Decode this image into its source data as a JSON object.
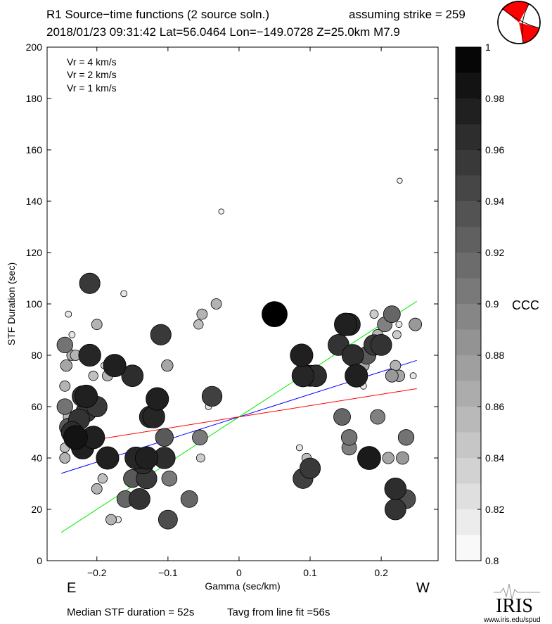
{
  "header": {
    "title": "R1 Source−time functions (2 source soln.)",
    "strike_text": "assuming strike = 259",
    "event_line": "2018/01/23 09:31:42  Lat=56.0464 Lon=−149.0728  Z=25.0km  M7.9"
  },
  "chart_data": {
    "type": "scatter",
    "title": "R1 Source−time functions (2 source soln.)",
    "xlabel": "Gamma (sec/km)",
    "ylabel": "STF Duration (sec)",
    "xlim": [
      -0.27,
      0.28
    ],
    "ylim": [
      0,
      200
    ],
    "x_ticks": [
      -0.2,
      -0.1,
      0,
      0.1,
      0.2
    ],
    "x_tick_labels": [
      "−0.2",
      "−0.1",
      "0",
      "0.1",
      "0.2"
    ],
    "y_ticks": [
      0,
      20,
      40,
      60,
      80,
      100,
      120,
      140,
      160,
      180,
      200
    ],
    "y_tick_labels": [
      "0",
      "20",
      "40",
      "60",
      "80",
      "100",
      "120",
      "140",
      "160",
      "180",
      "200"
    ],
    "direction_labels": {
      "left": "E",
      "right": "W"
    },
    "legend": [
      {
        "label": "Vr = 4 km/s",
        "color": "#00ee00"
      },
      {
        "label": "Vr = 2 km/s",
        "color": "#0000ff"
      },
      {
        "label": "Vr = 1 km/s",
        "color": "#ff0000"
      }
    ],
    "fit_lines": [
      {
        "name": "Vr = 4 km/s",
        "color": "#00ee00",
        "x": [
          -0.25,
          0.25
        ],
        "y": [
          11,
          101
        ]
      },
      {
        "name": "Vr = 2 km/s",
        "color": "#0000ff",
        "x": [
          -0.25,
          0.25
        ],
        "y": [
          34,
          78
        ]
      },
      {
        "name": "Vr = 1 km/s",
        "color": "#ff0000",
        "x": [
          -0.25,
          0.25
        ],
        "y": [
          45,
          67
        ]
      }
    ],
    "colorbar": {
      "label": "CCC",
      "min": 0.8,
      "max": 1,
      "tick_labels": [
        "1",
        "0.98",
        "0.96",
        "0.94",
        "0.92",
        "0.9",
        "0.88",
        "0.86",
        "0.84",
        "0.82",
        "0.8"
      ]
    },
    "points": [
      {
        "x": 0.05,
        "y": 96,
        "ccc": 1.0
      },
      {
        "x": -0.21,
        "y": 108,
        "ccc": 0.955
      },
      {
        "x": -0.23,
        "y": 48,
        "ccc": 0.985
      },
      {
        "x": -0.22,
        "y": 44,
        "ccc": 0.975
      },
      {
        "x": -0.235,
        "y": 50,
        "ccc": 0.965
      },
      {
        "x": -0.225,
        "y": 55,
        "ccc": 0.96
      },
      {
        "x": -0.215,
        "y": 58,
        "ccc": 0.955
      },
      {
        "x": -0.205,
        "y": 48,
        "ccc": 0.975
      },
      {
        "x": -0.24,
        "y": 52,
        "ccc": 0.93
      },
      {
        "x": -0.22,
        "y": 64,
        "ccc": 0.96
      },
      {
        "x": -0.215,
        "y": 64,
        "ccc": 0.975
      },
      {
        "x": -0.2,
        "y": 60,
        "ccc": 0.955
      },
      {
        "x": -0.21,
        "y": 80,
        "ccc": 0.97
      },
      {
        "x": -0.175,
        "y": 76,
        "ccc": 0.975
      },
      {
        "x": -0.15,
        "y": 72,
        "ccc": 0.965
      },
      {
        "x": -0.185,
        "y": 40,
        "ccc": 0.975
      },
      {
        "x": -0.145,
        "y": 40,
        "ccc": 0.97
      },
      {
        "x": -0.13,
        "y": 40,
        "ccc": 0.975
      },
      {
        "x": -0.135,
        "y": 38,
        "ccc": 0.965
      },
      {
        "x": -0.105,
        "y": 40,
        "ccc": 0.965
      },
      {
        "x": -0.125,
        "y": 56,
        "ccc": 0.965
      },
      {
        "x": -0.12,
        "y": 56,
        "ccc": 0.97
      },
      {
        "x": -0.115,
        "y": 63,
        "ccc": 0.975
      },
      {
        "x": -0.13,
        "y": 32,
        "ccc": 0.955
      },
      {
        "x": -0.14,
        "y": 24,
        "ccc": 0.96
      },
      {
        "x": -0.15,
        "y": 32,
        "ccc": 0.93
      },
      {
        "x": -0.16,
        "y": 24,
        "ccc": 0.92
      },
      {
        "x": -0.11,
        "y": 88,
        "ccc": 0.955
      },
      {
        "x": -0.105,
        "y": 48,
        "ccc": 0.93
      },
      {
        "x": -0.1,
        "y": 16,
        "ccc": 0.94
      },
      {
        "x": -0.098,
        "y": 32,
        "ccc": 0.905
      },
      {
        "x": -0.07,
        "y": 24,
        "ccc": 0.92
      },
      {
        "x": -0.055,
        "y": 48,
        "ccc": 0.905
      },
      {
        "x": -0.038,
        "y": 64,
        "ccc": 0.95
      },
      {
        "x": -0.245,
        "y": 84,
        "ccc": 0.91
      },
      {
        "x": -0.243,
        "y": 76,
        "ccc": 0.87
      },
      {
        "x": -0.245,
        "y": 68,
        "ccc": 0.86
      },
      {
        "x": -0.245,
        "y": 60,
        "ccc": 0.91
      },
      {
        "x": -0.24,
        "y": 56,
        "ccc": 0.86
      },
      {
        "x": -0.245,
        "y": 44,
        "ccc": 0.85
      },
      {
        "x": -0.245,
        "y": 40,
        "ccc": 0.86
      },
      {
        "x": -0.235,
        "y": 80,
        "ccc": 0.86
      },
      {
        "x": -0.23,
        "y": 80,
        "ccc": 0.86
      },
      {
        "x": -0.205,
        "y": 72,
        "ccc": 0.85
      },
      {
        "x": -0.2,
        "y": 92,
        "ccc": 0.86
      },
      {
        "x": -0.185,
        "y": 72,
        "ccc": 0.86
      },
      {
        "x": -0.18,
        "y": 16,
        "ccc": 0.86
      },
      {
        "x": -0.2,
        "y": 28,
        "ccc": 0.86
      },
      {
        "x": -0.192,
        "y": 32,
        "ccc": 0.85
      },
      {
        "x": -0.101,
        "y": 76,
        "ccc": 0.87
      },
      {
        "x": -0.052,
        "y": 96,
        "ccc": 0.86
      },
      {
        "x": -0.057,
        "y": 92,
        "ccc": 0.85
      },
      {
        "x": -0.032,
        "y": 100,
        "ccc": 0.86
      },
      {
        "x": -0.054,
        "y": 40,
        "ccc": 0.84
      },
      {
        "x": -0.043,
        "y": 60,
        "ccc": 0.82
      },
      {
        "x": -0.162,
        "y": 104,
        "ccc": 0.82
      },
      {
        "x": -0.17,
        "y": 16,
        "ccc": 0.82
      },
      {
        "x": -0.19,
        "y": 76,
        "ccc": 0.82
      },
      {
        "x": -0.24,
        "y": 96,
        "ccc": 0.82
      },
      {
        "x": -0.235,
        "y": 88,
        "ccc": 0.82
      },
      {
        "x": -0.025,
        "y": 136,
        "ccc": 0.81
      },
      {
        "x": 0.226,
        "y": 148,
        "ccc": 0.81
      },
      {
        "x": 0.088,
        "y": 80,
        "ccc": 0.975
      },
      {
        "x": 0.09,
        "y": 72,
        "ccc": 0.97
      },
      {
        "x": 0.108,
        "y": 72,
        "ccc": 0.965
      },
      {
        "x": 0.1,
        "y": 72,
        "ccc": 0.96
      },
      {
        "x": 0.15,
        "y": 92,
        "ccc": 0.975
      },
      {
        "x": 0.155,
        "y": 92,
        "ccc": 0.97
      },
      {
        "x": 0.165,
        "y": 72,
        "ccc": 0.975
      },
      {
        "x": 0.16,
        "y": 80,
        "ccc": 0.965
      },
      {
        "x": 0.14,
        "y": 84,
        "ccc": 0.96
      },
      {
        "x": 0.183,
        "y": 40,
        "ccc": 0.98
      },
      {
        "x": 0.22,
        "y": 28,
        "ccc": 0.965
      },
      {
        "x": 0.22,
        "y": 20,
        "ccc": 0.96
      },
      {
        "x": 0.2,
        "y": 84,
        "ccc": 0.96
      },
      {
        "x": 0.19,
        "y": 84,
        "ccc": 0.955
      },
      {
        "x": 0.215,
        "y": 96,
        "ccc": 0.92
      },
      {
        "x": 0.205,
        "y": 92,
        "ccc": 0.9
      },
      {
        "x": 0.215,
        "y": 72,
        "ccc": 0.88
      },
      {
        "x": 0.22,
        "y": 76,
        "ccc": 0.86
      },
      {
        "x": 0.225,
        "y": 72,
        "ccc": 0.87
      },
      {
        "x": 0.235,
        "y": 48,
        "ccc": 0.91
      },
      {
        "x": 0.23,
        "y": 40,
        "ccc": 0.88
      },
      {
        "x": 0.235,
        "y": 24,
        "ccc": 0.94
      },
      {
        "x": 0.248,
        "y": 92,
        "ccc": 0.88
      },
      {
        "x": 0.21,
        "y": 40,
        "ccc": 0.87
      },
      {
        "x": 0.195,
        "y": 56,
        "ccc": 0.9
      },
      {
        "x": 0.145,
        "y": 56,
        "ccc": 0.92
      },
      {
        "x": 0.155,
        "y": 48,
        "ccc": 0.91
      },
      {
        "x": 0.155,
        "y": 44,
        "ccc": 0.9
      },
      {
        "x": 0.18,
        "y": 80,
        "ccc": 0.93
      },
      {
        "x": 0.17,
        "y": 72,
        "ccc": 0.85
      },
      {
        "x": 0.175,
        "y": 76,
        "ccc": 0.87
      },
      {
        "x": 0.195,
        "y": 88,
        "ccc": 0.86
      },
      {
        "x": 0.09,
        "y": 32,
        "ccc": 0.95
      },
      {
        "x": 0.1,
        "y": 36,
        "ccc": 0.955
      },
      {
        "x": 0.095,
        "y": 40,
        "ccc": 0.85
      },
      {
        "x": 0.085,
        "y": 44,
        "ccc": 0.82
      },
      {
        "x": 0.097,
        "y": 38,
        "ccc": 0.82
      },
      {
        "x": 0.19,
        "y": 96,
        "ccc": 0.84
      },
      {
        "x": 0.225,
        "y": 92,
        "ccc": 0.82
      },
      {
        "x": 0.222,
        "y": 88,
        "ccc": 0.84
      },
      {
        "x": 0.175,
        "y": 68,
        "ccc": 0.82
      },
      {
        "x": 0.245,
        "y": 72,
        "ccc": 0.82
      }
    ]
  },
  "footer": {
    "median_text": "Median STF duration = 52s",
    "tavg_text": "Tavg from line fit =56s"
  },
  "logo": {
    "name": "IRIS",
    "url_text": "www.iris.edu/spud"
  },
  "colors": {
    "vr4": "#00ee00",
    "vr2": "#0000ff",
    "vr1": "#ff0000",
    "beachball_red": "#ff0000"
  }
}
